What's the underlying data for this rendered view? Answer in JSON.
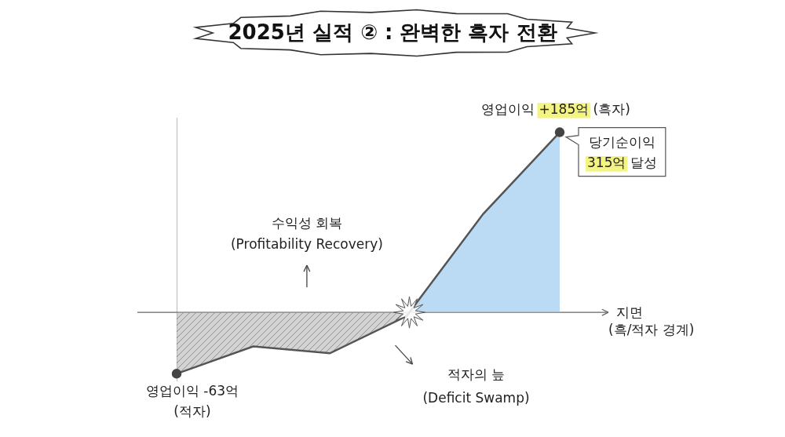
{
  "chart_data": {
    "type": "line",
    "title": "2025년 실적 ② : 완벽한 흑자 전환",
    "categories": [
      null,
      null,
      null,
      null,
      null,
      null
    ],
    "values": [
      -63,
      -35,
      -42,
      -4,
      101,
      185
    ],
    "color": "#555555",
    "ylim": [
      -70,
      200
    ],
    "yticks": [
      0
    ],
    "grid": "y",
    "tick_labels": false,
    "annotations": {
      "start": [
        "영업이익 -63억",
        "(적자)"
      ],
      "end": "영업이익 +185억 (흑자)",
      "callout": [
        "당기순이익",
        "315억 달성"
      ],
      "rise": [
        "수익성 회복",
        "(Profitability Recovery)"
      ],
      "fall": [
        "적자의 늪",
        "(Deficit Swamp)"
      ],
      "baseline": [
        "지면",
        "(흑/적자 경계)"
      ]
    }
  }
}
